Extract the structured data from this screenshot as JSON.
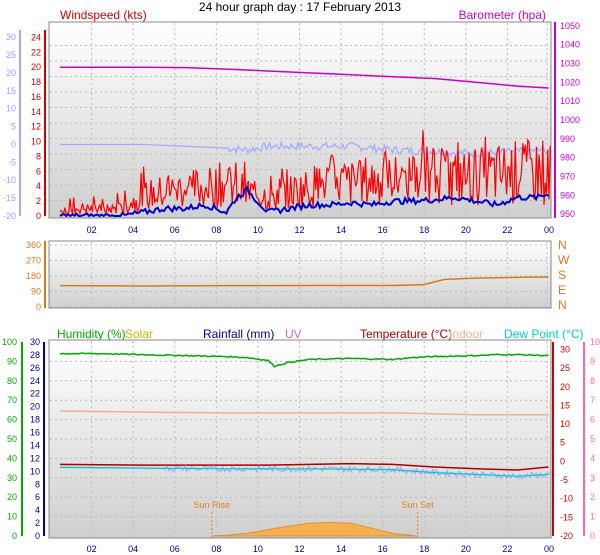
{
  "title": "24 hour graph day : 17 February 2013",
  "colors": {
    "wind": "#cc0000",
    "gust": "#ff0000",
    "avgwind": "#0000cc",
    "baro": "#cc00cc",
    "windchill": "#a0a8ff",
    "dir": "#d97a1a",
    "hum": "#00aa00",
    "solar": "#c8b400",
    "rain": "#000099",
    "uv": "#cc66cc",
    "temp": "#aa0000",
    "indoor": "#f0b090",
    "dew": "#00cccc",
    "sun": "#e08020"
  },
  "chart_data": [
    {
      "type": "line",
      "panel": "wind-baro",
      "labels": {
        "left_title": "Windspeed (kts)",
        "right_title": "Barometer (hpa)"
      },
      "x_ticks": [
        "02",
        "04",
        "06",
        "08",
        "10",
        "12",
        "14",
        "16",
        "18",
        "20",
        "22",
        "00"
      ],
      "y_left_ticks": [
        "0",
        "2",
        "4",
        "6",
        "8",
        "10",
        "12",
        "14",
        "16",
        "18",
        "20",
        "22",
        "24"
      ],
      "y_left2_ticks": [
        "-20",
        "-15",
        "-10",
        "-5",
        "0",
        "5",
        "10",
        "15",
        "20",
        "25",
        "30"
      ],
      "y_right_ticks": [
        "950",
        "960",
        "970",
        "980",
        "990",
        "1000",
        "1010",
        "1020",
        "1030",
        "1040",
        "1050"
      ],
      "ylim_left": [
        0,
        25
      ],
      "ylim_left2": [
        -20,
        32
      ],
      "ylim_right": [
        948,
        1052
      ],
      "series": [
        {
          "key": "baro",
          "axis": "right",
          "x": [
            0,
            2,
            4,
            6,
            8,
            10,
            12,
            14,
            16,
            18,
            20,
            22,
            23.5
          ],
          "values": [
            1028,
            1028,
            1028,
            1027.8,
            1027,
            1026,
            1025,
            1024,
            1023,
            1022,
            1020,
            1018,
            1017
          ]
        },
        {
          "key": "windchill",
          "axis": "left2",
          "x": [
            0,
            2,
            4,
            6,
            8,
            9,
            10,
            12,
            14,
            16,
            18,
            20,
            22,
            23.5
          ],
          "values": [
            0,
            0,
            0,
            -0.5,
            -1,
            -1.5,
            -0.5,
            -0.5,
            -0.5,
            -1.5,
            -2,
            -2.5,
            -2,
            -1.5
          ]
        },
        {
          "key": "gust",
          "axis": "left",
          "x": [
            0,
            1,
            2,
            3,
            4,
            5,
            6,
            7,
            8,
            9,
            10,
            11,
            12,
            13,
            14,
            15,
            16,
            17,
            18,
            19,
            20,
            21,
            22,
            23,
            23.5
          ],
          "values": [
            0.5,
            1,
            0.8,
            1,
            2.5,
            3,
            3.5,
            3.5,
            4,
            3,
            2.5,
            3,
            3.5,
            4.5,
            4,
            4.5,
            4.5,
            5,
            5,
            4.8,
            5,
            5.2,
            5.5,
            5.5,
            5
          ]
        },
        {
          "key": "avgwind",
          "axis": "left",
          "x": [
            0,
            1,
            2,
            3,
            4,
            5,
            6,
            7,
            8,
            8.5,
            9,
            9.5,
            10,
            11,
            12,
            13,
            14,
            15,
            16,
            17,
            18,
            19,
            20,
            21,
            22,
            23,
            23.5
          ],
          "values": [
            0,
            0,
            0,
            0,
            0.5,
            1,
            1,
            1.5,
            0.5,
            2.5,
            3.5,
            2,
            0.5,
            1,
            1.5,
            1.5,
            1.8,
            1.5,
            2,
            2,
            2.2,
            2.5,
            2,
            1.5,
            2.5,
            2.5,
            3
          ]
        }
      ]
    },
    {
      "type": "line",
      "panel": "direction",
      "y_left_ticks": [
        "0",
        "90",
        "180",
        "270",
        "360"
      ],
      "y_right_ticks": [
        "N",
        "W",
        "S",
        "E",
        "N"
      ],
      "ylim": [
        0,
        360
      ],
      "series": [
        {
          "key": "dir",
          "x": [
            0,
            4,
            8,
            12,
            16,
            17.5,
            18.5,
            20,
            22,
            23.5
          ],
          "values": [
            124,
            122,
            124,
            125,
            125,
            130,
            160,
            168,
            172,
            175
          ]
        }
      ]
    },
    {
      "type": "line",
      "panel": "temp-hum",
      "labels": {
        "humidity": "Humidity (%)",
        "solar": "Solar",
        "rainfall": "Rainfall (mm)",
        "uv": "UV",
        "temperature": "Temperature (°C)",
        "indoor": "Indoor",
        "dewpoint": "Dew Point (°C)",
        "sunrise": "Sun Rise",
        "sunset": "Sun Set"
      },
      "x_ticks": [
        "02",
        "04",
        "06",
        "08",
        "10",
        "12",
        "14",
        "16",
        "18",
        "20",
        "22",
        "00"
      ],
      "y_hum_ticks": [
        "0",
        "10",
        "20",
        "30",
        "40",
        "50",
        "60",
        "70",
        "80",
        "90",
        "100"
      ],
      "y_rain_ticks": [
        "0",
        "2",
        "4",
        "6",
        "8",
        "10",
        "12",
        "14",
        "16",
        "18",
        "20",
        "22",
        "24",
        "26",
        "28",
        "30"
      ],
      "y_temp_ticks": [
        "-20",
        "-15",
        "-10",
        "-5",
        "0",
        "5",
        "10",
        "15",
        "20",
        "25",
        "30"
      ],
      "y_uv_ticks": [
        "0",
        "1",
        "2",
        "3",
        "4",
        "5",
        "6",
        "7",
        "8",
        "9",
        "10"
      ],
      "ylim_hum": [
        0,
        100
      ],
      "ylim_temp": [
        -20,
        32
      ],
      "sunrise_hour": 7.3,
      "sunset_hour": 17.2,
      "series": [
        {
          "key": "hum",
          "axis": "hum",
          "x": [
            0,
            2,
            4,
            6,
            8,
            9,
            10,
            10.3,
            11,
            12,
            14,
            16,
            17,
            18,
            20,
            21,
            22,
            23.5
          ],
          "values": [
            94,
            94,
            93.5,
            93,
            92.5,
            92,
            90.5,
            87.5,
            89.5,
            91,
            91.5,
            91,
            92,
            92.5,
            93,
            93.5,
            93.5,
            93
          ]
        },
        {
          "key": "indoor",
          "axis": "temp",
          "x": [
            0,
            4,
            8,
            12,
            16,
            20,
            23.5
          ],
          "values": [
            13.5,
            13.2,
            13,
            13,
            13,
            12.5,
            12.5
          ]
        },
        {
          "key": "temp",
          "axis": "temp",
          "x": [
            0,
            4,
            8,
            10,
            12,
            14,
            16,
            18,
            20,
            22,
            23.5
          ],
          "values": [
            -0.8,
            -1,
            -1,
            -1,
            -0.8,
            -0.6,
            -0.8,
            -1.5,
            -2,
            -2.3,
            -1.5
          ]
        },
        {
          "key": "dew",
          "axis": "temp",
          "x": [
            0,
            4,
            8,
            12,
            16,
            18,
            20,
            22,
            23.5
          ],
          "values": [
            -1.6,
            -1.8,
            -2,
            -2,
            -2.2,
            -3,
            -3.5,
            -4,
            -3.5
          ]
        },
        {
          "key": "solar",
          "axis": "hum",
          "x": [
            7.3,
            8,
            9,
            10,
            11,
            12,
            13,
            14,
            15,
            16,
            17.2
          ],
          "values": [
            0,
            0.3,
            1.2,
            2.8,
            4.5,
            5.8,
            6.2,
            5.8,
            3.5,
            1.2,
            0
          ]
        }
      ]
    }
  ]
}
